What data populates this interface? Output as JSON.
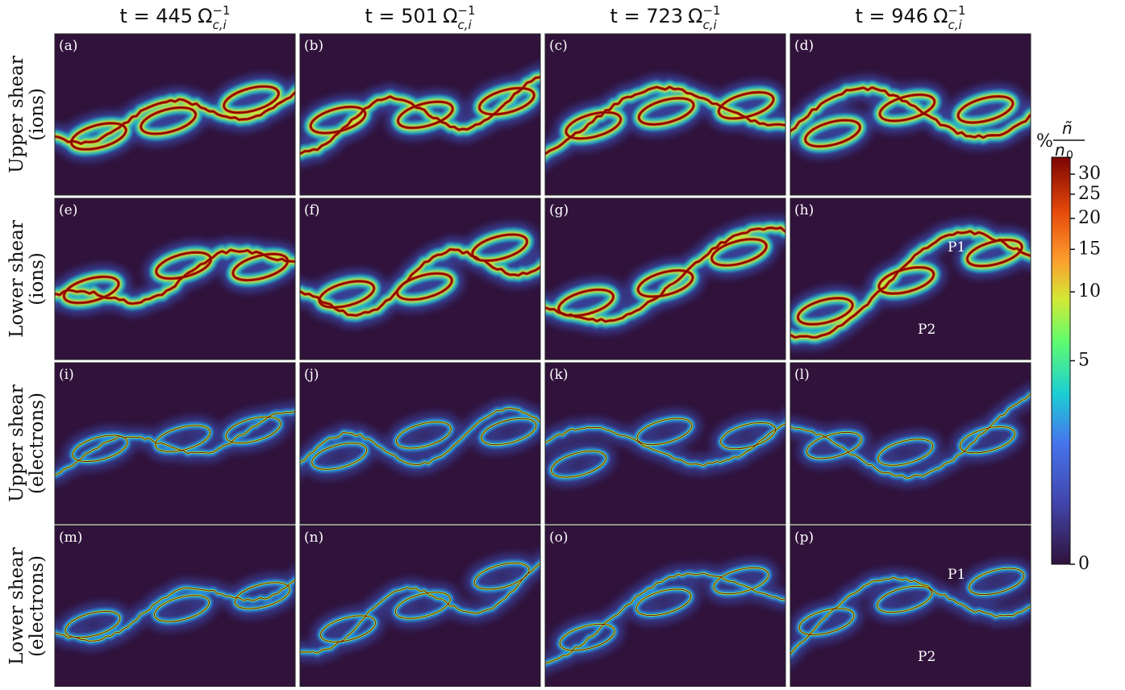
{
  "columns": [
    {
      "t": "t = 445",
      "unit": "Ω",
      "sup": "−1",
      "sub": "c,i"
    },
    {
      "t": "t = 501",
      "unit": "Ω",
      "sup": "−1",
      "sub": "c,i"
    },
    {
      "t": "t = 723",
      "unit": "Ω",
      "sup": "−1",
      "sub": "c,i"
    },
    {
      "t": "t = 946",
      "unit": "Ω",
      "sup": "−1",
      "sub": "c,i"
    }
  ],
  "rows": [
    [
      "Upper shear",
      "(ions)"
    ],
    [
      "Lower shear",
      "(ions)"
    ],
    [
      "Upper shear",
      "(electrons)"
    ],
    [
      "Lower shear",
      "(electrons)"
    ]
  ],
  "panels": [
    "(a)",
    "(b)",
    "(c)",
    "(d)",
    "(e)",
    "(f)",
    "(g)",
    "(h)",
    "(i)",
    "(j)",
    "(k)",
    "(l)",
    "(m)",
    "(n)",
    "(o)",
    "(p)"
  ],
  "annotations": [
    [
      "P1",
      "P2"
    ],
    [
      "P1",
      "P2"
    ]
  ],
  "colorbar": {
    "prefix": "%",
    "num": "ñ",
    "den": "n",
    "den_sub": "0",
    "lim": [
      0,
      35
    ],
    "ticks": [
      0,
      5,
      10,
      15,
      20,
      25,
      30
    ],
    "scale": "log1p"
  }
}
